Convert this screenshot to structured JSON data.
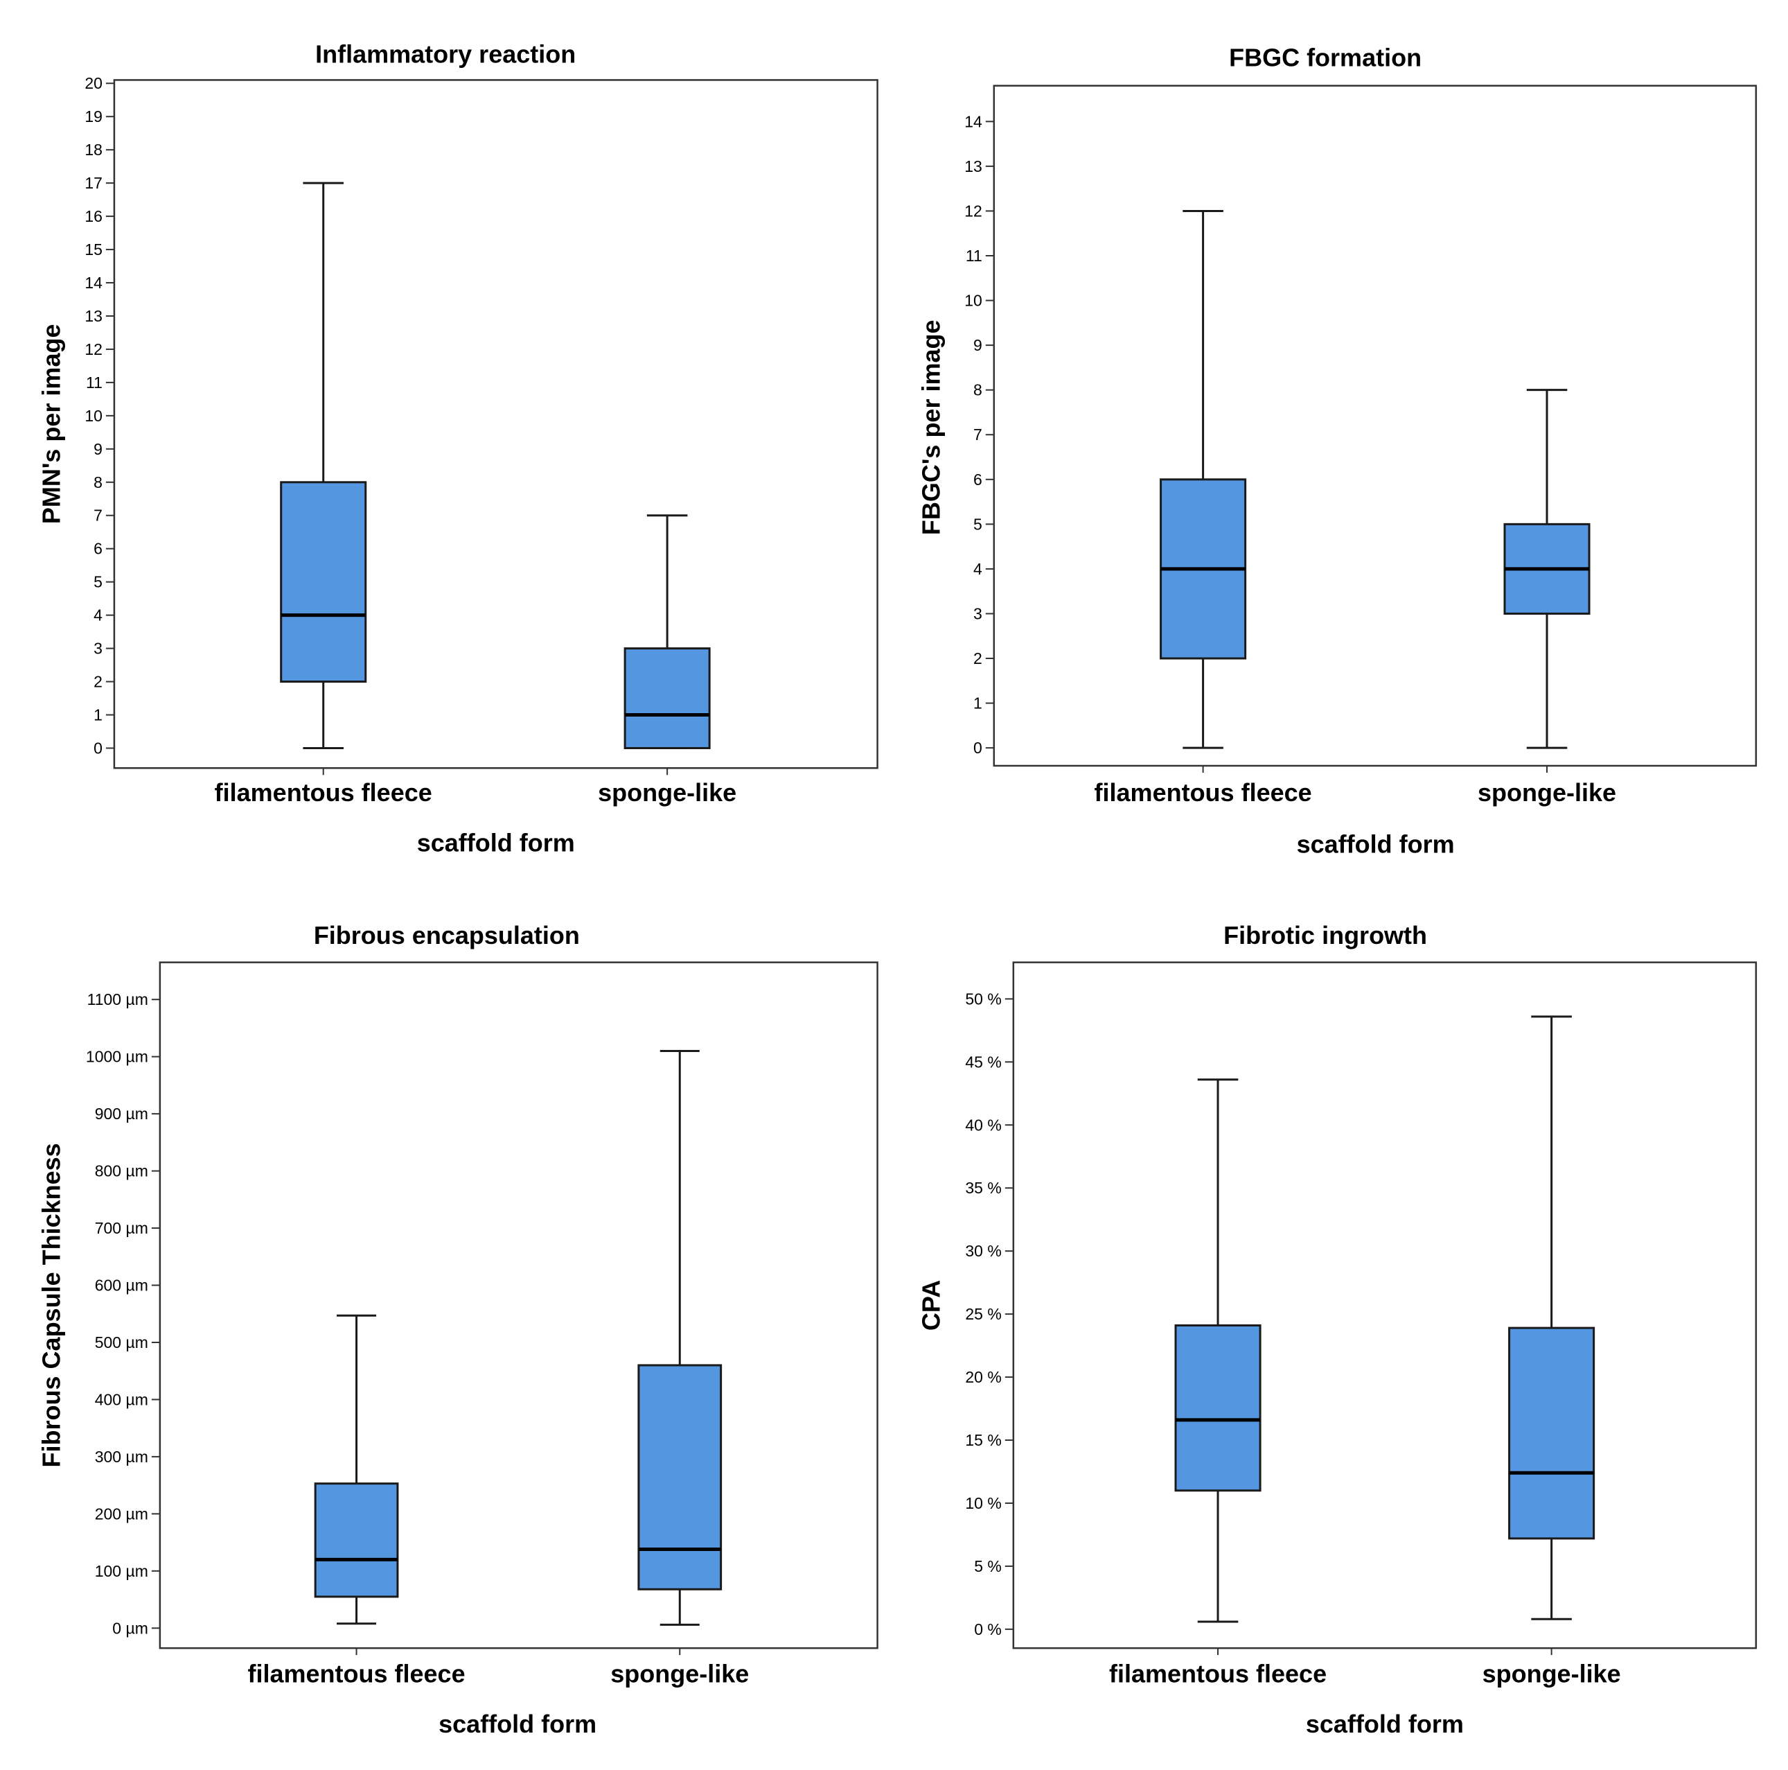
{
  "chart_data": [
    {
      "type": "boxplot",
      "title": "Inflammatory reaction",
      "xlabel": "scaffold form",
      "ylabel": "PMN's per image",
      "ylim": [
        -0.6,
        20.1
      ],
      "ticks": [
        0,
        1,
        2,
        3,
        4,
        5,
        6,
        7,
        8,
        9,
        10,
        11,
        12,
        13,
        14,
        15,
        16,
        17,
        18,
        19,
        20
      ],
      "tick_labels": [
        "0",
        "1",
        "2",
        "3",
        "4",
        "5",
        "6",
        "7",
        "8",
        "9",
        "10",
        "11",
        "12",
        "13",
        "14",
        "15",
        "16",
        "17",
        "18",
        "19",
        "20"
      ],
      "categories": [
        "filamentous fleece",
        "sponge-like"
      ],
      "series": [
        {
          "name": "filamentous fleece",
          "min": 0,
          "q1": 2,
          "median": 4,
          "q3": 8,
          "max": 17
        },
        {
          "name": "sponge-like",
          "min": 0,
          "q1": 0,
          "median": 1,
          "q3": 3,
          "max": 7
        }
      ],
      "box_color": "#5596e0"
    },
    {
      "type": "boxplot",
      "title": "FBGC formation",
      "xlabel": "scaffold form",
      "ylabel": "FBGC's per image",
      "ylim": [
        -0.4,
        14.8
      ],
      "ticks": [
        0,
        1,
        2,
        3,
        4,
        5,
        6,
        7,
        8,
        9,
        10,
        11,
        12,
        13,
        14
      ],
      "tick_labels": [
        "0",
        "1",
        "2",
        "3",
        "4",
        "5",
        "6",
        "7",
        "8",
        "9",
        "10",
        "11",
        "12",
        "13",
        "14"
      ],
      "categories": [
        "filamentous fleece",
        "sponge-like"
      ],
      "series": [
        {
          "name": "filamentous fleece",
          "min": 0,
          "q1": 2,
          "median": 4,
          "q3": 6,
          "max": 12
        },
        {
          "name": "sponge-like",
          "min": 0,
          "q1": 3,
          "median": 4,
          "q3": 5,
          "max": 8
        }
      ],
      "box_color": "#5596e0"
    },
    {
      "type": "boxplot",
      "title": "Fibrous encapsulation",
      "xlabel": "scaffold form",
      "ylabel": "Fibrous Capsule Thickness",
      "ylim": [
        -35,
        1165
      ],
      "ticks": [
        0,
        100,
        200,
        300,
        400,
        500,
        600,
        700,
        800,
        900,
        1000,
        1100
      ],
      "tick_labels": [
        "0 µm",
        "100 µm",
        "200 µm",
        "300 µm",
        "400 µm",
        "500 µm",
        "600 µm",
        "700 µm",
        "800 µm",
        "900 µm",
        "1000 µm",
        "1100 µm"
      ],
      "categories": [
        "filamentous fleece",
        "sponge-like"
      ],
      "series": [
        {
          "name": "filamentous fleece",
          "min": 8,
          "q1": 55,
          "median": 120,
          "q3": 253,
          "max": 547
        },
        {
          "name": "sponge-like",
          "min": 6,
          "q1": 68,
          "median": 138,
          "q3": 460,
          "max": 1010
        }
      ],
      "box_color": "#5596e0"
    },
    {
      "type": "boxplot",
      "title": "Fibrotic ingrowth",
      "xlabel": "scaffold form",
      "ylabel": "CPA",
      "ylim": [
        -1.5,
        52.9
      ],
      "ticks": [
        0,
        5,
        10,
        15,
        20,
        25,
        30,
        35,
        40,
        45,
        50
      ],
      "tick_labels": [
        "0 %",
        "5 %",
        "10 %",
        "15 %",
        "20 %",
        "25 %",
        "30 %",
        "35 %",
        "40 %",
        "45 %",
        "50 %"
      ],
      "categories": [
        "filamentous fleece",
        "sponge-like"
      ],
      "series": [
        {
          "name": "filamentous fleece",
          "min": 0.6,
          "q1": 11,
          "median": 16.6,
          "q3": 24.1,
          "max": 43.6
        },
        {
          "name": "sponge-like",
          "min": 0.8,
          "q1": 7.2,
          "median": 12.4,
          "q3": 23.9,
          "max": 48.6
        }
      ],
      "box_color": "#5596e0"
    }
  ]
}
